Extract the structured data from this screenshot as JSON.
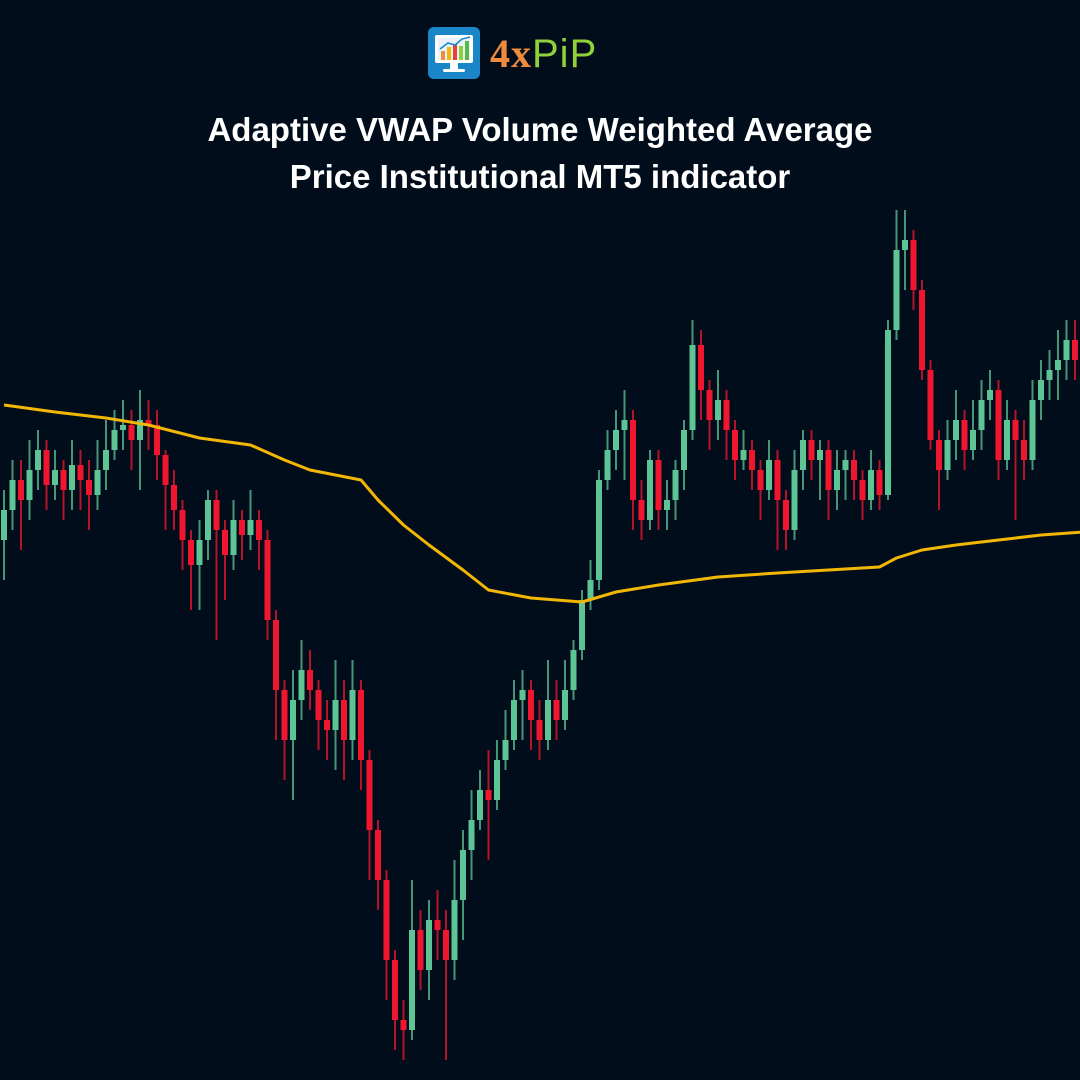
{
  "brand": {
    "logo_text_a": "4x",
    "logo_text_b": "PiP"
  },
  "title": {
    "line1": "Adaptive VWAP Volume Weighted Average",
    "line2": "Price Institutional MT5 indicator"
  },
  "colors": {
    "background": "#020d1b",
    "bullish": "#5cc495",
    "bearish": "#f0162f",
    "vwap": "#f2b705",
    "title": "#ffffff"
  },
  "chart_data": {
    "type": "candlestick",
    "title": "",
    "xlabel": "",
    "ylabel": "",
    "grid": false,
    "legend": "none",
    "ylim": [
      0,
      108
    ],
    "open": [
      54,
      57,
      60,
      58,
      61,
      63,
      59.5,
      61,
      59,
      61.5,
      60,
      58.5,
      61,
      63,
      65,
      65.5,
      64,
      66,
      65.5,
      62.5,
      59.5,
      57,
      54,
      51.5,
      54,
      58,
      55,
      52.5,
      56,
      54.5,
      56,
      54,
      46,
      39,
      34,
      38,
      41,
      39,
      36,
      35,
      38,
      34,
      39,
      32,
      25,
      20,
      12,
      6,
      5,
      15,
      11,
      16,
      15,
      12,
      18,
      23,
      26,
      29,
      28,
      32,
      34,
      38,
      39,
      36,
      34,
      38,
      36,
      39,
      43,
      48,
      50,
      60,
      63,
      65,
      66,
      58,
      56,
      62,
      57,
      58,
      61,
      65,
      73.5,
      69,
      66,
      68,
      65,
      62,
      63,
      61,
      59,
      62,
      58,
      55,
      61,
      64,
      62,
      63,
      59,
      61,
      62,
      60,
      58,
      61,
      58.5,
      75,
      83,
      84,
      79,
      71,
      64,
      61,
      64,
      66,
      63,
      65,
      68,
      69,
      62,
      66,
      64,
      62,
      68,
      70,
      71,
      72,
      74
    ],
    "high": [
      59,
      62,
      62,
      64,
      65,
      64,
      63,
      62,
      64,
      63,
      62,
      64,
      66,
      67,
      68,
      67,
      69,
      68,
      67,
      63,
      61,
      58,
      55,
      56,
      59,
      59,
      56,
      58,
      57,
      59,
      57,
      55,
      47,
      40,
      41,
      44,
      43,
      40,
      38,
      42,
      40,
      42,
      40,
      33,
      26,
      21,
      13,
      8,
      20,
      17,
      18,
      19,
      17,
      22,
      25,
      29,
      31,
      33,
      34,
      37,
      40,
      41,
      40,
      38,
      42,
      40,
      42,
      44,
      49,
      52,
      61,
      65,
      67,
      69,
      67,
      60,
      63,
      63,
      60,
      62,
      66,
      76,
      75,
      70,
      71,
      69,
      66,
      65,
      64,
      62,
      64,
      63,
      59,
      63,
      65,
      65,
      64,
      64,
      63,
      63,
      63,
      61,
      63,
      62,
      76,
      87,
      87,
      85,
      80,
      72,
      65,
      66,
      69,
      67,
      68,
      70,
      71,
      70,
      68,
      67,
      66,
      70,
      72,
      73,
      75,
      76,
      76
    ],
    "low": [
      50,
      55,
      53,
      56,
      59,
      57,
      58,
      56,
      57,
      57,
      55,
      57,
      59,
      62,
      63,
      61,
      59,
      63,
      60,
      55,
      55,
      51,
      47,
      47,
      52,
      44,
      48,
      51,
      52,
      53,
      51,
      44,
      34,
      30,
      28,
      36,
      37,
      33,
      32,
      31,
      30,
      32,
      29,
      20,
      17,
      8,
      3,
      2,
      4,
      9,
      8,
      12,
      2,
      10,
      14,
      20,
      25,
      22,
      27,
      31,
      33,
      34,
      33,
      32,
      33,
      34,
      35,
      38,
      42,
      47,
      49,
      59,
      61,
      60,
      55,
      54,
      55,
      55,
      55,
      56,
      59,
      64,
      66,
      63,
      64,
      62,
      60,
      61,
      59,
      56,
      58,
      53,
      53,
      54,
      59,
      60,
      58,
      56,
      57,
      58,
      58,
      56,
      57,
      57,
      58,
      74,
      79,
      77,
      70,
      63,
      57,
      60,
      62,
      61,
      62,
      63,
      66,
      60,
      61,
      56,
      60,
      61,
      66,
      68,
      68,
      70,
      70
    ],
    "close": [
      57,
      60,
      58,
      61,
      63,
      59.5,
      61,
      59,
      61.5,
      60,
      58.5,
      61,
      63,
      65,
      65.5,
      64,
      66,
      65.5,
      62.5,
      59.5,
      57,
      54,
      51.5,
      54,
      58,
      55,
      52.5,
      56,
      54.5,
      56,
      54,
      46,
      39,
      34,
      38,
      41,
      39,
      36,
      35,
      38,
      34,
      39,
      32,
      25,
      20,
      12,
      6,
      5,
      15,
      11,
      16,
      15,
      12,
      18,
      23,
      26,
      29,
      28,
      32,
      34,
      38,
      39,
      36,
      34,
      38,
      36,
      39,
      43,
      48,
      50,
      60,
      63,
      65,
      66,
      58,
      56,
      62,
      57,
      58,
      61,
      65,
      73.5,
      69,
      66,
      68,
      65,
      62,
      63,
      61,
      59,
      62,
      58,
      55,
      61,
      64,
      62,
      63,
      59,
      61,
      62,
      60,
      58,
      61,
      58.5,
      75,
      83,
      84,
      79,
      71,
      64,
      61,
      64,
      66,
      63,
      65,
      68,
      69,
      62,
      66,
      64,
      62,
      68,
      70,
      71,
      72,
      74,
      72
    ],
    "vwap": [
      [
        0,
        67.5
      ],
      [
        6,
        66.8
      ],
      [
        12,
        66.2
      ],
      [
        17,
        65.5
      ],
      [
        23,
        64.2
      ],
      [
        29,
        63.5
      ],
      [
        33,
        62
      ],
      [
        36,
        61
      ],
      [
        42,
        60
      ],
      [
        44,
        58
      ],
      [
        47,
        55.5
      ],
      [
        50,
        53.5
      ],
      [
        54,
        51
      ],
      [
        57,
        49
      ],
      [
        62,
        48.2
      ],
      [
        68,
        47.8
      ],
      [
        72,
        48.8
      ],
      [
        77,
        49.5
      ],
      [
        84,
        50.3
      ],
      [
        91,
        50.7
      ],
      [
        97,
        51
      ],
      [
        103,
        51.3
      ],
      [
        105,
        52.2
      ],
      [
        108,
        53
      ],
      [
        112,
        53.5
      ],
      [
        117,
        54
      ],
      [
        122,
        54.5
      ],
      [
        127,
        54.8
      ]
    ]
  }
}
